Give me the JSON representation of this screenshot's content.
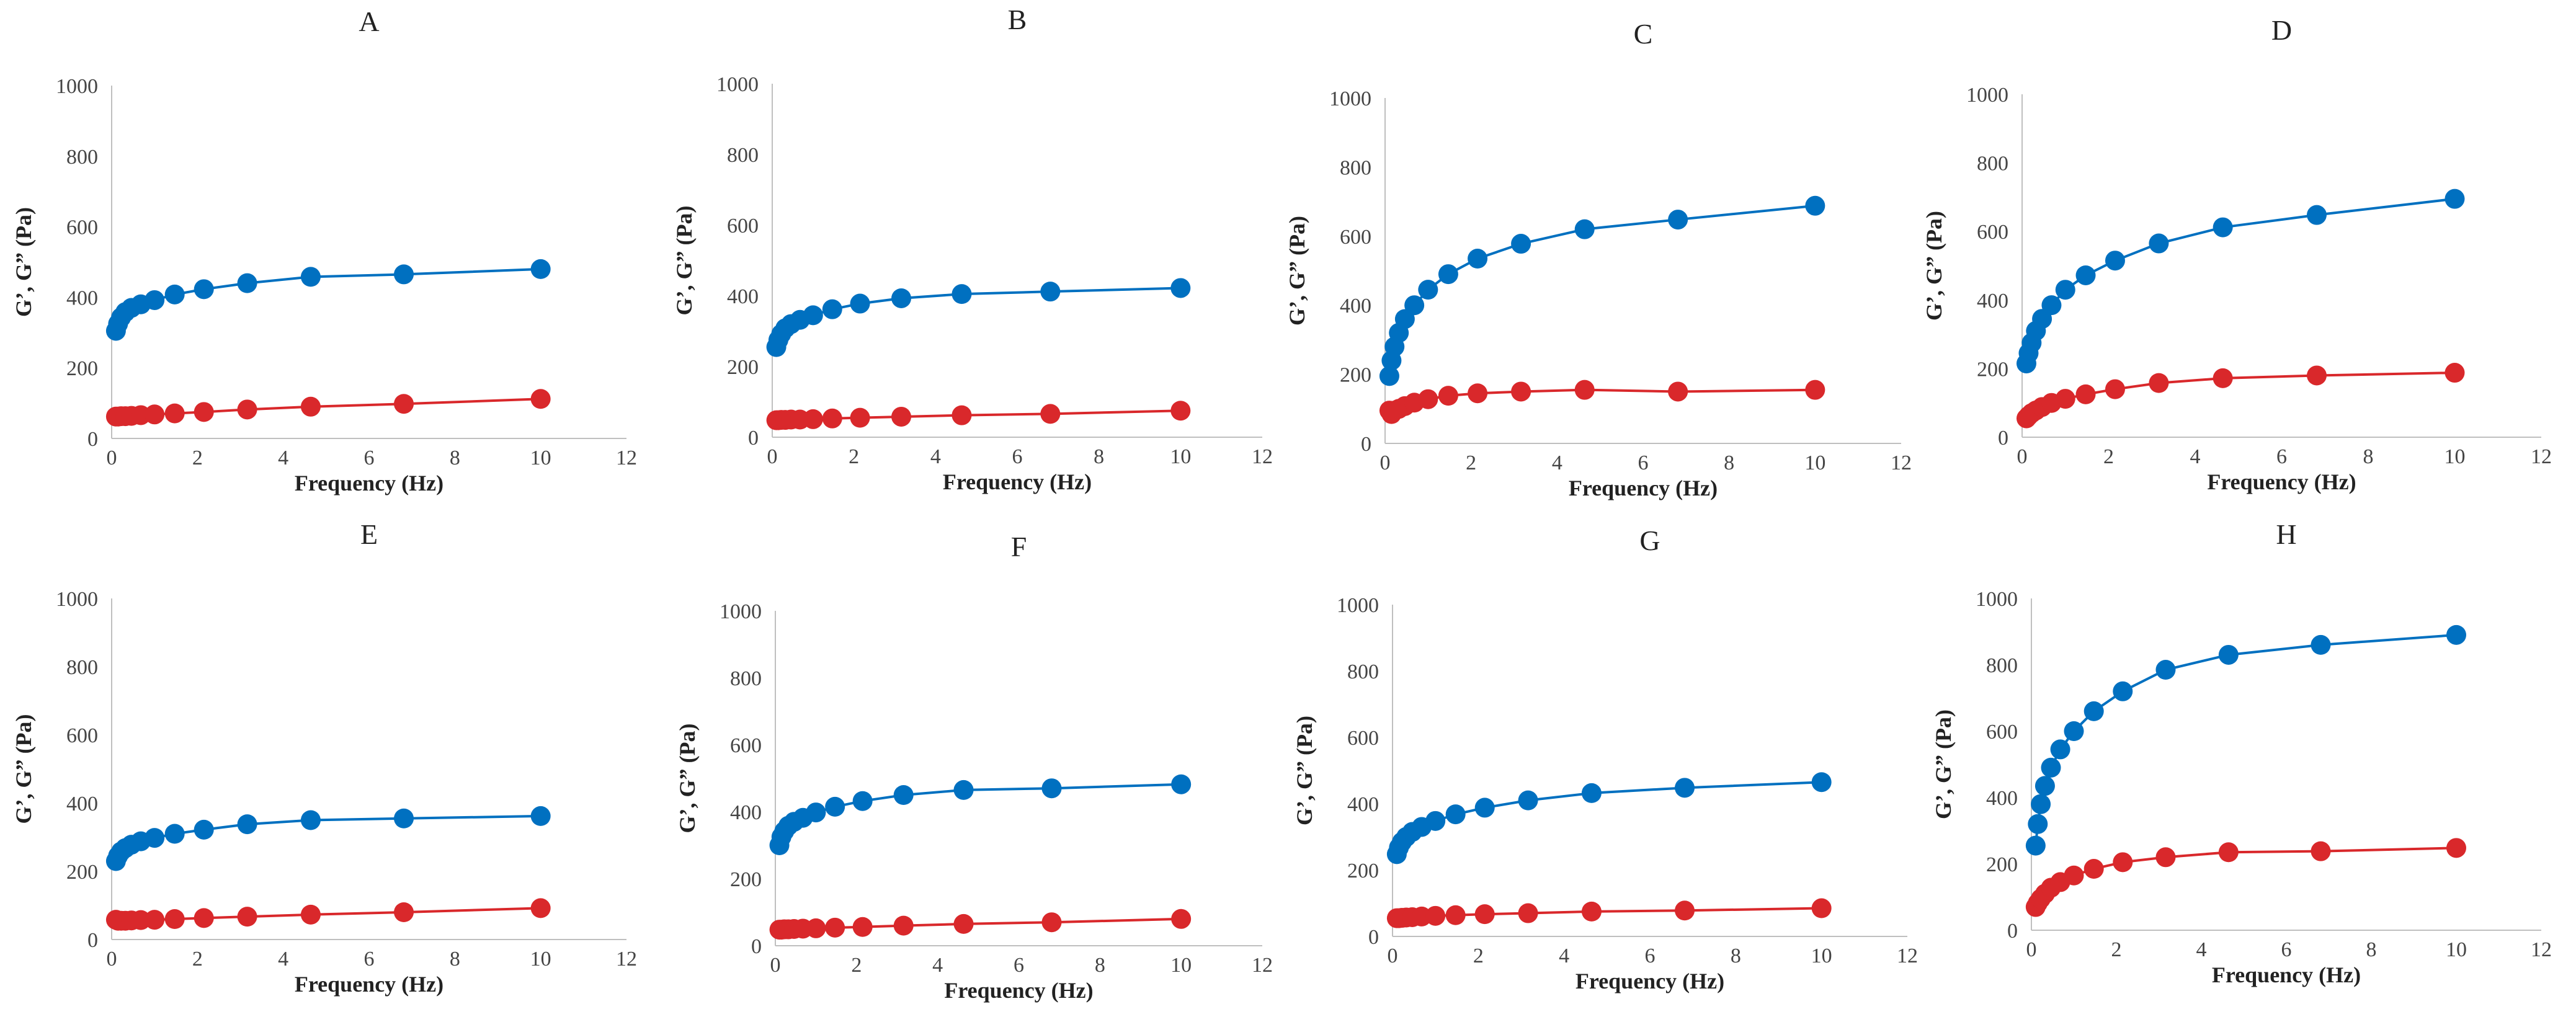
{
  "colors": {
    "g_prime": "#0070C0",
    "g_double_prime": "#D9282B",
    "axis": "#BFBFBF",
    "text": "#222222"
  },
  "chart_data": [
    {
      "type": "line",
      "title": "A",
      "xlabel": "Frequency (Hz)",
      "ylabel": "G’, G” (Pa)",
      "xlim": [
        0,
        12
      ],
      "ylim": [
        0,
        1000
      ],
      "xticks": [
        "0",
        "2",
        "4",
        "6",
        "8",
        "10",
        "12"
      ],
      "yticks": [
        "0",
        "200",
        "400",
        "600",
        "800",
        "1000"
      ],
      "x": [
        0.1,
        0.15,
        0.22,
        0.32,
        0.46,
        0.68,
        1.0,
        1.47,
        2.15,
        3.16,
        4.64,
        6.81,
        10.0
      ],
      "series": [
        {
          "values": [
            305,
            325,
            343,
            358,
            370,
            380,
            392,
            408,
            423,
            440,
            458,
            465,
            480
          ]
        },
        {
          "values": [
            62,
            62,
            63,
            63,
            64,
            66,
            68,
            71,
            75,
            82,
            90,
            98,
            112
          ]
        }
      ]
    },
    {
      "type": "line",
      "title": "B",
      "xlabel": "Frequency (Hz)",
      "ylabel": "G’, G” (Pa)",
      "xlim": [
        0,
        12
      ],
      "ylim": [
        0,
        1000
      ],
      "xticks": [
        "0",
        "2",
        "4",
        "6",
        "8",
        "10",
        "12"
      ],
      "yticks": [
        "0",
        "200",
        "400",
        "600",
        "800",
        "1000"
      ],
      "x": [
        0.1,
        0.15,
        0.22,
        0.32,
        0.46,
        0.68,
        1.0,
        1.47,
        2.15,
        3.16,
        4.64,
        6.81,
        10.0
      ],
      "series": [
        {
          "values": [
            255,
            275,
            292,
            308,
            320,
            332,
            345,
            362,
            378,
            393,
            405,
            412,
            422
          ]
        },
        {
          "values": [
            48,
            48,
            49,
            49,
            50,
            50,
            51,
            53,
            55,
            58,
            62,
            66,
            75
          ]
        }
      ]
    },
    {
      "type": "line",
      "title": "C",
      "xlabel": "Frequency (Hz)",
      "ylabel": "G’, G” (Pa)",
      "xlim": [
        0,
        12
      ],
      "ylim": [
        0,
        1000
      ],
      "xticks": [
        "0",
        "2",
        "4",
        "6",
        "8",
        "10",
        "12"
      ],
      "yticks": [
        "0",
        "200",
        "400",
        "600",
        "800",
        "1000"
      ],
      "x": [
        0.1,
        0.15,
        0.22,
        0.32,
        0.46,
        0.68,
        1.0,
        1.47,
        2.15,
        3.16,
        4.64,
        6.81,
        10.0
      ],
      "series": [
        {
          "values": [
            195,
            240,
            280,
            320,
            360,
            400,
            445,
            490,
            535,
            578,
            620,
            648,
            688
          ]
        },
        {
          "values": [
            95,
            85,
            95,
            100,
            108,
            118,
            128,
            138,
            145,
            150,
            155,
            150,
            155
          ]
        }
      ]
    },
    {
      "type": "line",
      "title": "D",
      "xlabel": "Frequency (Hz)",
      "ylabel": "G’, G” (Pa)",
      "xlim": [
        0,
        12
      ],
      "ylim": [
        0,
        1000
      ],
      "xticks": [
        "0",
        "2",
        "4",
        "6",
        "8",
        "10",
        "12"
      ],
      "yticks": [
        "0",
        "200",
        "400",
        "600",
        "800",
        "1000"
      ],
      "x": [
        0.1,
        0.15,
        0.22,
        0.32,
        0.46,
        0.68,
        1.0,
        1.47,
        2.15,
        3.16,
        4.64,
        6.81,
        10.0
      ],
      "series": [
        {
          "values": [
            215,
            245,
            275,
            310,
            345,
            385,
            430,
            472,
            515,
            565,
            612,
            648,
            695
          ]
        },
        {
          "values": [
            55,
            62,
            70,
            78,
            88,
            100,
            112,
            125,
            140,
            158,
            172,
            180,
            188
          ]
        }
      ]
    },
    {
      "type": "line",
      "title": "E",
      "xlabel": "Frequency (Hz)",
      "ylabel": "G’, G” (Pa)",
      "xlim": [
        0,
        12
      ],
      "ylim": [
        0,
        1000
      ],
      "xticks": [
        "0",
        "2",
        "4",
        "6",
        "8",
        "10",
        "12"
      ],
      "yticks": [
        "0",
        "200",
        "400",
        "600",
        "800",
        "1000"
      ],
      "x": [
        0.1,
        0.15,
        0.22,
        0.32,
        0.46,
        0.68,
        1.0,
        1.47,
        2.15,
        3.16,
        4.64,
        6.81,
        10.0
      ],
      "series": [
        {
          "values": [
            230,
            245,
            258,
            268,
            278,
            288,
            298,
            310,
            322,
            338,
            350,
            355,
            362
          ]
        },
        {
          "values": [
            58,
            55,
            55,
            55,
            56,
            57,
            58,
            60,
            63,
            67,
            73,
            80,
            92
          ]
        }
      ]
    },
    {
      "type": "line",
      "title": "F",
      "xlabel": "Frequency (Hz)",
      "ylabel": "G’, G” (Pa)",
      "xlim": [
        0,
        12
      ],
      "ylim": [
        0,
        1000
      ],
      "xticks": [
        "0",
        "2",
        "4",
        "6",
        "8",
        "10",
        "12"
      ],
      "yticks": [
        "0",
        "200",
        "400",
        "600",
        "800",
        "1000"
      ],
      "x": [
        0.1,
        0.15,
        0.22,
        0.32,
        0.46,
        0.68,
        1.0,
        1.47,
        2.15,
        3.16,
        4.64,
        6.81,
        10.0
      ],
      "series": [
        {
          "values": [
            300,
            325,
            342,
            358,
            370,
            382,
            398,
            415,
            432,
            450,
            465,
            470,
            482
          ]
        },
        {
          "values": [
            48,
            48,
            49,
            49,
            50,
            51,
            52,
            54,
            56,
            60,
            65,
            70,
            80
          ]
        }
      ]
    },
    {
      "type": "line",
      "title": "G",
      "xlabel": "Frequency (Hz)",
      "ylabel": "G’, G” (Pa)",
      "xlim": [
        0,
        12
      ],
      "ylim": [
        0,
        1000
      ],
      "xticks": [
        "0",
        "2",
        "4",
        "6",
        "8",
        "10",
        "12"
      ],
      "yticks": [
        "0",
        "200",
        "400",
        "600",
        "800",
        "1000"
      ],
      "x": [
        0.1,
        0.15,
        0.22,
        0.32,
        0.46,
        0.68,
        1.0,
        1.47,
        2.15,
        3.16,
        4.64,
        6.81,
        10.0
      ],
      "series": [
        {
          "values": [
            248,
            268,
            285,
            300,
            315,
            330,
            348,
            368,
            388,
            410,
            432,
            448,
            465
          ]
        },
        {
          "values": [
            55,
            55,
            56,
            57,
            58,
            60,
            62,
            64,
            67,
            70,
            75,
            78,
            85
          ]
        }
      ]
    },
    {
      "type": "line",
      "title": "H",
      "xlabel": "Frequency (Hz)",
      "ylabel": "G’, G” (Pa)",
      "xlim": [
        0,
        12
      ],
      "ylim": [
        0,
        1000
      ],
      "xticks": [
        "0",
        "2",
        "4",
        "6",
        "8",
        "10",
        "12"
      ],
      "yticks": [
        "0",
        "200",
        "400",
        "600",
        "800",
        "1000"
      ],
      "x": [
        0.1,
        0.15,
        0.22,
        0.32,
        0.46,
        0.68,
        1.0,
        1.47,
        2.15,
        3.16,
        4.64,
        6.81,
        10.0
      ],
      "series": [
        {
          "values": [
            255,
            320,
            380,
            435,
            490,
            545,
            600,
            660,
            720,
            785,
            830,
            860,
            890
          ]
        },
        {
          "values": [
            70,
            82,
            95,
            110,
            128,
            145,
            165,
            185,
            205,
            220,
            235,
            238,
            248
          ]
        }
      ]
    }
  ]
}
